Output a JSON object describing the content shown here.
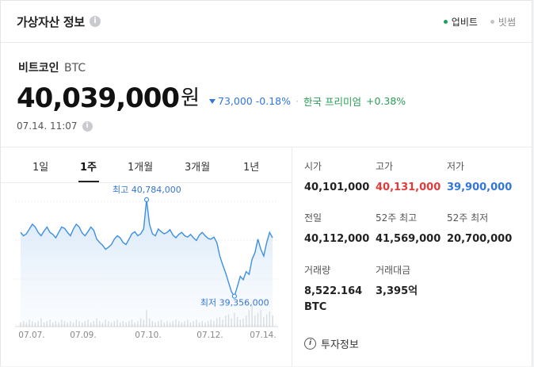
{
  "header": {
    "title": "가상자산 정보",
    "sources": [
      {
        "label": "업비트",
        "color": "#19a15f",
        "text_color": "#222"
      },
      {
        "label": "빗썸",
        "color": "#c4c4c4",
        "text_color": "#888"
      }
    ]
  },
  "coin": {
    "name": "비트코인",
    "symbol": "BTC"
  },
  "price": {
    "value": "40,039,000",
    "unit": "원",
    "change": "73,000",
    "change_pct": "-0.18%",
    "premium_label": "한국 프리미엄",
    "premium_value": "+0.38%"
  },
  "timestamp": "07.14. 11:07",
  "tabs": [
    {
      "label": "1일"
    },
    {
      "label": "1주",
      "active": true
    },
    {
      "label": "1개월"
    },
    {
      "label": "3개월"
    },
    {
      "label": "1년"
    }
  ],
  "chart_data": {
    "type": "line",
    "x_labels": [
      "07.07.",
      "07.09.",
      "07.10.",
      "07.12.",
      "07.14."
    ],
    "annotations": {
      "high": "최고 40,784,000",
      "low": "최저 39,356,000"
    },
    "ylim": [
      39200000,
      40900000
    ],
    "series": [
      {
        "values": [
          40300000,
          40250000,
          40280000,
          40350000,
          40420000,
          40380000,
          40300000,
          40250000,
          40320000,
          40380000,
          40300000,
          40270000,
          40220000,
          40300000,
          40380000,
          40360000,
          40300000,
          40250000,
          40350000,
          40420000,
          40380000,
          40290000,
          40250000,
          40310000,
          40380000,
          40330000,
          40200000,
          40150000,
          40110000,
          40050000,
          40080000,
          40120000,
          40200000,
          40250000,
          40220000,
          40150000,
          40120000,
          40200000,
          40280000,
          40310000,
          40250000,
          40280000,
          40350000,
          40784000,
          40420000,
          40280000,
          40250000,
          40350000,
          40310000,
          40280000,
          40300000,
          40340000,
          40260000,
          40220000,
          40270000,
          40300000,
          40250000,
          40230000,
          40270000,
          40220000,
          40180000,
          40260000,
          40300000,
          40250000,
          40210000,
          40200000,
          40230000,
          40150000,
          39950000,
          39820000,
          39700000,
          39560000,
          39420000,
          39356000,
          39500000,
          39650000,
          39600000,
          39720000,
          39680000,
          39900000,
          40000000,
          40200000,
          40050000,
          39950000,
          40150000,
          40300000,
          40220000
        ]
      }
    ],
    "volume": [
      3,
      4,
      3,
      5,
      4,
      3,
      4,
      6,
      3,
      4,
      5,
      3,
      4,
      3,
      5,
      4,
      3,
      4,
      3,
      5,
      4,
      3,
      4,
      5,
      3,
      4,
      6,
      4,
      3,
      5,
      4,
      3,
      4,
      5,
      3,
      4,
      3,
      4,
      5,
      3,
      4,
      6,
      5,
      12,
      6,
      4,
      3,
      4,
      5,
      3,
      4,
      3,
      4,
      5,
      4,
      3,
      4,
      5,
      3,
      4,
      5,
      3,
      4,
      3,
      4,
      5,
      4,
      6,
      7,
      5,
      8,
      9,
      6,
      10,
      7,
      5,
      6,
      8,
      12,
      15,
      8,
      10,
      12,
      7,
      9,
      11,
      8
    ]
  },
  "stats": [
    {
      "label": "시가",
      "value": "40,101,000",
      "color": "#222"
    },
    {
      "label": "고가",
      "value": "40,131,000",
      "color": "#e23b3b"
    },
    {
      "label": "저가",
      "value": "39,900,000",
      "color": "#3276d9"
    },
    {
      "label": "전일",
      "value": "40,112,000",
      "color": "#222"
    },
    {
      "label": "52주 최고",
      "value": "41,569,000",
      "color": "#222"
    },
    {
      "label": "52주 최저",
      "value": "20,700,000",
      "color": "#222"
    },
    {
      "label": "거래량",
      "value": "8,522.164",
      "unit": "BTC",
      "color": "#222"
    },
    {
      "label": "거래대금",
      "value": "3,395억",
      "color": "#222"
    }
  ],
  "invest_info": "투자정보"
}
